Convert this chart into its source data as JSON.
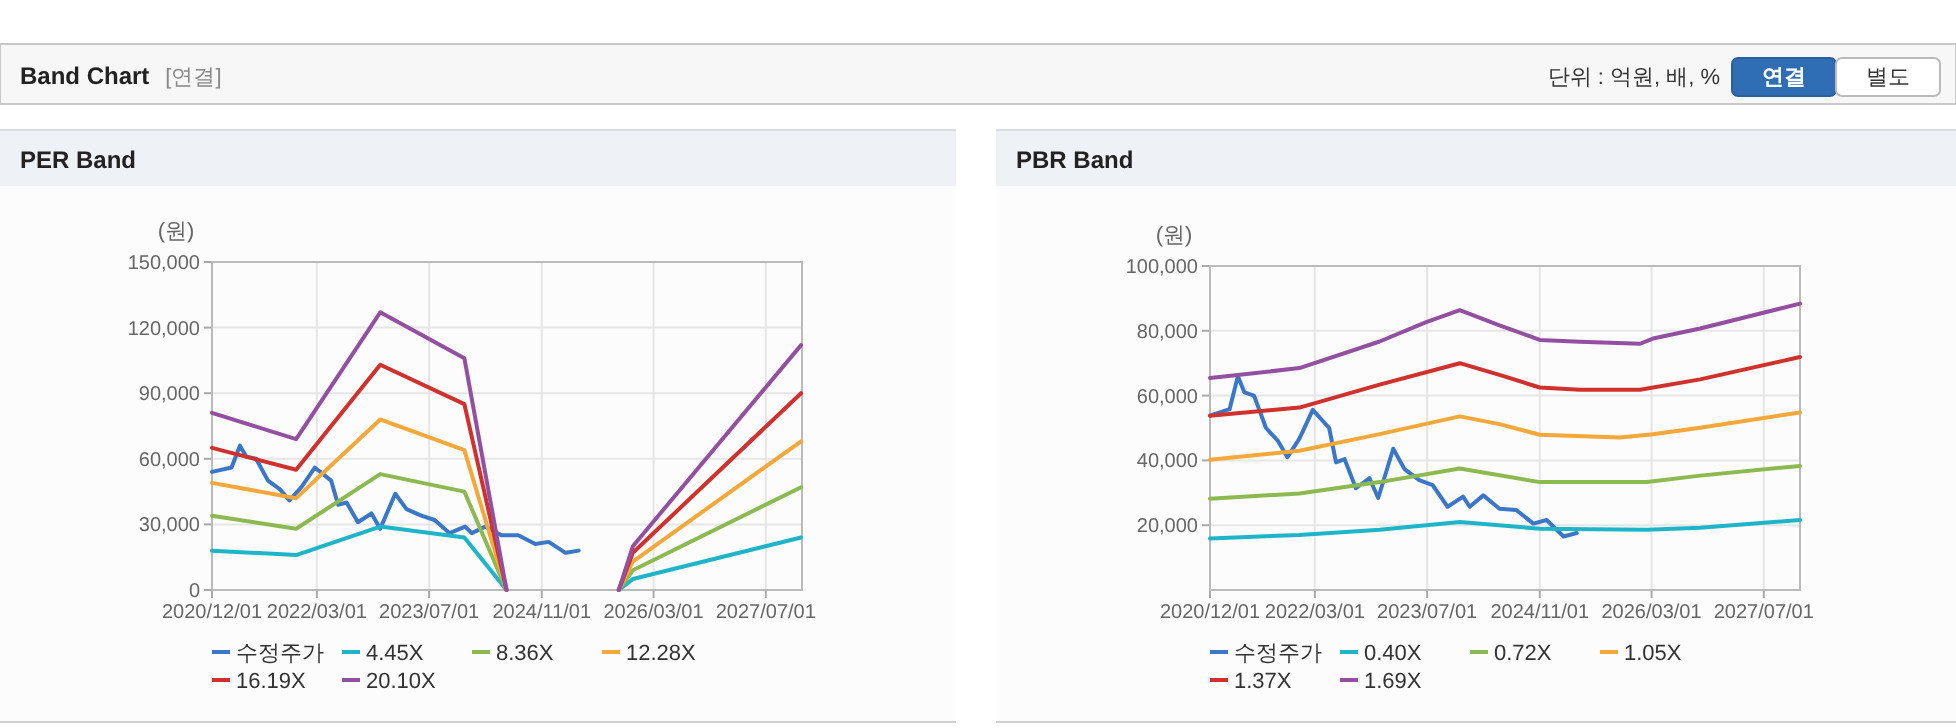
{
  "chart_data": [
    {
      "type": "other",
      "title": "Band Chart",
      "annotations": [
        "[연결]",
        "단위 : 억원, 배, %",
        "연결",
        "별도"
      ]
    },
    {
      "type": "line",
      "title": "PER Band",
      "ylabel": "(원)",
      "xlim": [
        "2020-12-01",
        "2027-12-05"
      ],
      "ylim": [
        0,
        150000
      ],
      "xticks": [
        {
          "value": "2020-12-01",
          "label": "2020/12/01"
        },
        {
          "value": "2022-03-01",
          "label": "2022/03/01"
        },
        {
          "value": "2023-07-01",
          "label": "2023/07/01"
        },
        {
          "value": "2024-11-01",
          "label": "2024/11/01"
        },
        {
          "value": "2026-03-01",
          "label": "2026/03/01"
        },
        {
          "value": "2027-07-01",
          "label": "2027/07/01"
        }
      ],
      "yticks": [
        0,
        {
          "value": 30000,
          "label": "30,000"
        },
        {
          "value": 60000,
          "label": "60,000"
        },
        {
          "value": 90000,
          "label": "90,000"
        },
        {
          "value": 120000,
          "label": "120,000"
        },
        {
          "value": 150000,
          "label": "150,000"
        }
      ],
      "grid": true,
      "legend": "bottom",
      "marker": "none",
      "line_style": "solid",
      "series": [
        {
          "name": "수정주가",
          "color": "#3a77c9",
          "x": [
            "2020-12-01",
            "2021-02-24",
            "2021-04-01",
            "2021-04-29",
            "2021-06-10",
            "2021-08-01",
            "2021-09-22",
            "2021-11-02",
            "2021-12-24",
            "2022-02-20",
            "2022-05-02",
            "2022-06-01",
            "2022-07-08",
            "2022-08-26",
            "2022-10-24",
            "2022-12-01",
            "2023-02-04",
            "2023-03-25",
            "2023-05-28",
            "2023-07-25",
            "2023-09-28",
            "2023-12-04",
            "2024-01-02",
            "2024-03-01",
            "2024-05-10",
            "2024-07-22",
            "2024-10-04",
            "2024-12-01",
            "2025-02-12",
            "2025-04-10"
          ],
          "values": [
            54000,
            56000,
            66000,
            61000,
            60000,
            50000,
            46000,
            41000,
            47000,
            56000,
            50000,
            39000,
            40000,
            31000,
            35000,
            28000,
            44000,
            37000,
            34000,
            32000,
            26000,
            29000,
            26000,
            29000,
            25000,
            25000,
            21000,
            22000,
            17000,
            18000
          ]
        },
        {
          "name": "4.45X",
          "color": "#1fb5c8",
          "x": [
            "2020-12-01",
            "2021-12-01",
            "2022-12-01",
            "2023-12-01",
            "2024-06-01"
          ],
          "values": [
            18000,
            16000,
            29000,
            24000,
            0
          ]
        },
        {
          "name": "8.36X",
          "color": "#8cba50",
          "x": [
            "2020-12-01",
            "2021-12-01",
            "2022-12-01",
            "2023-12-01",
            "2024-06-01"
          ],
          "values": [
            34000,
            28000,
            53000,
            45000,
            0
          ]
        },
        {
          "name": "12.28X",
          "color": "#f5a83a",
          "x": [
            "2020-12-01",
            "2021-12-01",
            "2022-12-01",
            "2023-12-01",
            "2024-06-01"
          ],
          "values": [
            49000,
            42000,
            78000,
            64000,
            0
          ]
        },
        {
          "name": "16.19X",
          "color": "#d0312d",
          "x": [
            "2020-12-01",
            "2021-12-01",
            "2022-12-01",
            "2023-12-01",
            "2024-06-01"
          ],
          "values": [
            65000,
            55000,
            103000,
            85000,
            0
          ]
        },
        {
          "name": "20.10X",
          "color": "#9450a0",
          "x": [
            "2020-12-01",
            "2021-12-01",
            "2022-12-01",
            "2023-12-01",
            "2024-06-01"
          ],
          "values": [
            81000,
            69000,
            127000,
            106000,
            0
          ]
        },
        {
          "color": "#1fb5c8",
          "x": [
            "2025-10-01",
            "2025-12-01",
            "2027-12-01"
          ],
          "values": [
            0,
            5000,
            24000
          ]
        },
        {
          "color": "#8cba50",
          "x": [
            "2025-10-01",
            "2025-12-01",
            "2027-12-01"
          ],
          "values": [
            0,
            9000,
            47000
          ]
        },
        {
          "color": "#f5a83a",
          "x": [
            "2025-10-01",
            "2025-12-01",
            "2027-12-01"
          ],
          "values": [
            0,
            13000,
            68000
          ]
        },
        {
          "color": "#d0312d",
          "x": [
            "2025-10-01",
            "2025-12-01",
            "2027-12-01"
          ],
          "values": [
            0,
            17000,
            90000
          ]
        },
        {
          "color": "#9450a0",
          "x": [
            "2025-10-01",
            "2025-12-01",
            "2027-12-01"
          ],
          "values": [
            0,
            20000,
            112000
          ]
        }
      ]
    },
    {
      "type": "line",
      "title": "PBR Band",
      "ylabel": "(원)",
      "xlim": [
        "2020-12-01",
        "2027-12-05"
      ],
      "ylim": [
        0,
        100000
      ],
      "xticks": [
        {
          "value": "2020-12-01",
          "label": "2020/12/01"
        },
        {
          "value": "2022-03-01",
          "label": "2022/03/01"
        },
        {
          "value": "2023-07-01",
          "label": "2023/07/01"
        },
        {
          "value": "2024-11-01",
          "label": "2024/11/01"
        },
        {
          "value": "2026-03-01",
          "label": "2026/03/01"
        },
        {
          "value": "2027-07-01",
          "label": "2027/07/01"
        }
      ],
      "yticks": [
        {
          "value": 20000,
          "label": "20,000"
        },
        {
          "value": 40000,
          "label": "40,000"
        },
        {
          "value": 60000,
          "label": "60,000"
        },
        {
          "value": 80000,
          "label": "80,000"
        },
        {
          "value": 100000,
          "label": "100,000"
        }
      ],
      "grid": true,
      "legend": "bottom",
      "marker": "none",
      "line_style": "solid",
      "series": [
        {
          "name": "수정주가",
          "color": "#3a77c9",
          "x": [
            "2020-12-01",
            "2021-02-24",
            "2021-04-01",
            "2021-04-29",
            "2021-06-10",
            "2021-08-01",
            "2021-09-22",
            "2021-11-02",
            "2021-12-24",
            "2022-02-20",
            "2022-05-02",
            "2022-06-01",
            "2022-07-08",
            "2022-08-26",
            "2022-10-24",
            "2022-12-01",
            "2023-02-04",
            "2023-03-25",
            "2023-05-28",
            "2023-07-25",
            "2023-09-28",
            "2023-12-04",
            "2024-01-02",
            "2024-03-01",
            "2024-05-10",
            "2024-07-22",
            "2024-10-04",
            "2024-12-01",
            "2025-02-12",
            "2025-04-10"
          ],
          "values": [
            53800,
            55800,
            66000,
            61000,
            60000,
            50000,
            46000,
            41000,
            46700,
            55600,
            50000,
            39400,
            40400,
            31400,
            34500,
            28400,
            43600,
            37300,
            33900,
            32400,
            25700,
            28800,
            25700,
            29200,
            25100,
            24700,
            20500,
            21600,
            16500,
            17600
          ]
        },
        {
          "name": "0.40X",
          "color": "#1fb5c8",
          "x": [
            "2020-12-01",
            "2021-12-24",
            "2022-12-07",
            "2023-11-20",
            "2024-11-01",
            "2026-02-09",
            "2026-09-28",
            "2027-12-05"
          ],
          "values": [
            15900,
            17000,
            18600,
            21000,
            18900,
            18600,
            19200,
            21600
          ]
        },
        {
          "name": "0.72X",
          "color": "#8cba50",
          "x": [
            "2020-12-01",
            "2021-12-24",
            "2022-12-07",
            "2023-11-20",
            "2024-11-01",
            "2026-02-09",
            "2026-09-28",
            "2027-12-05"
          ],
          "values": [
            28200,
            29800,
            33300,
            37500,
            33300,
            33300,
            35300,
            38300
          ]
        },
        {
          "name": "1.05X",
          "color": "#f5a83a",
          "x": [
            "2020-12-01",
            "2021-12-24",
            "2022-12-07",
            "2023-11-20",
            "2024-05-10",
            "2024-11-01",
            "2025-10-15",
            "2026-03-07",
            "2026-09-28",
            "2027-12-05"
          ],
          "values": [
            40200,
            43000,
            48100,
            53600,
            51200,
            47900,
            47100,
            48100,
            50100,
            54800
          ]
        },
        {
          "name": "1.37X",
          "color": "#d0312d",
          "x": [
            "2020-12-01",
            "2021-12-24",
            "2022-12-07",
            "2023-11-20",
            "2024-05-10",
            "2024-11-01",
            "2025-04-24",
            "2026-01-10",
            "2026-09-28",
            "2027-12-05"
          ],
          "values": [
            53800,
            56300,
            63400,
            70000,
            66400,
            62500,
            61800,
            61800,
            65000,
            71900
          ]
        },
        {
          "name": "1.69X",
          "color": "#9450a0",
          "x": [
            "2020-12-01",
            "2021-12-24",
            "2022-12-07",
            "2023-06-27",
            "2023-11-20",
            "2024-05-10",
            "2024-11-01",
            "2025-04-24",
            "2026-01-10",
            "2026-03-07",
            "2026-09-28",
            "2027-12-05"
          ],
          "values": [
            65400,
            68500,
            76700,
            82700,
            86400,
            81700,
            77200,
            76600,
            76000,
            77600,
            80700,
            88400
          ]
        }
      ]
    }
  ]
}
